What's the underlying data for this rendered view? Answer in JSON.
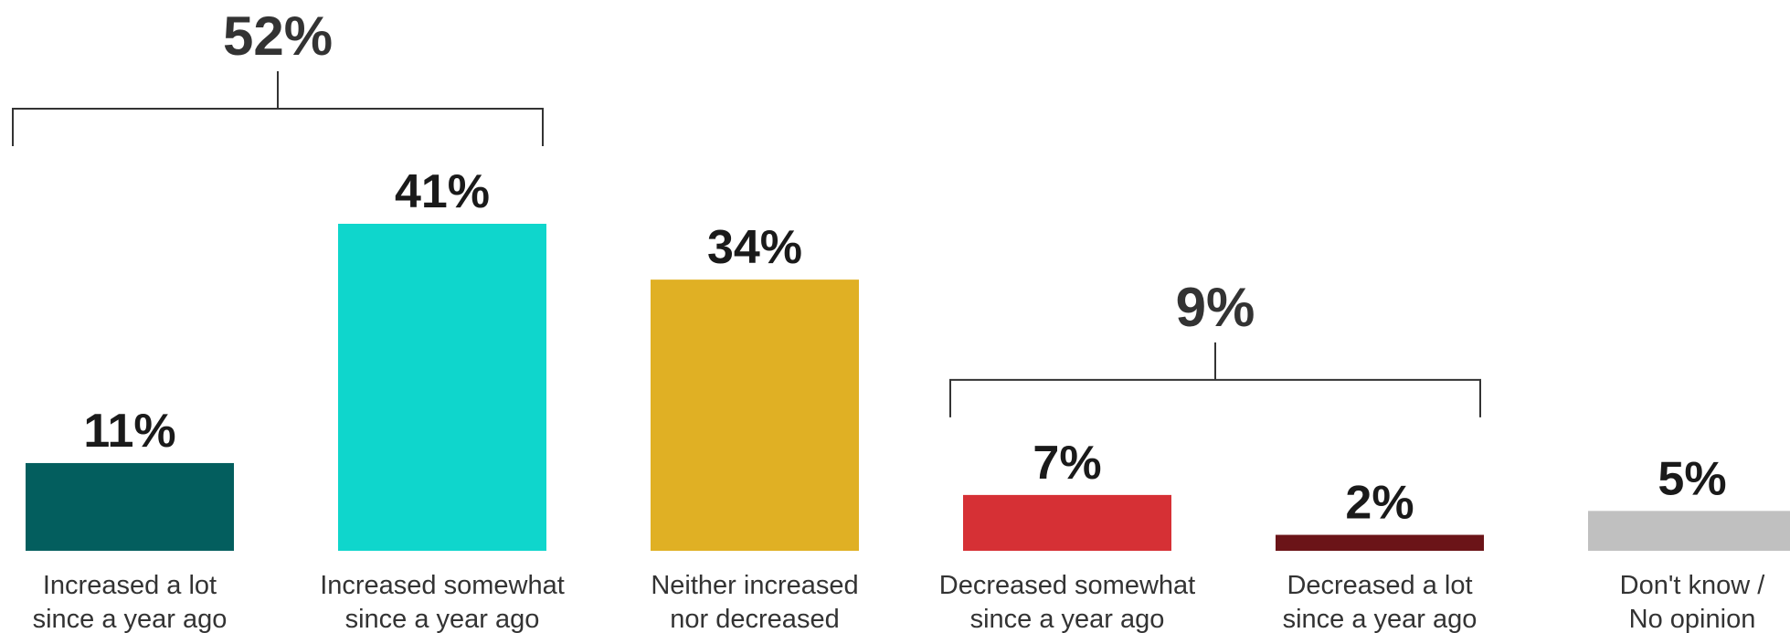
{
  "chart_data": {
    "type": "bar",
    "categories": [
      [
        "Increased a lot",
        "since a year ago"
      ],
      [
        "Increased somewhat",
        "since a year ago"
      ],
      [
        "Neither increased",
        "nor decreased"
      ],
      [
        "Decreased somewhat",
        "since a year ago"
      ],
      [
        "Decreased a lot",
        "since a year ago"
      ],
      [
        "Don't know /",
        "No opinion"
      ]
    ],
    "values": [
      11,
      41,
      34,
      7,
      2,
      5
    ],
    "value_labels": [
      "11%",
      "41%",
      "34%",
      "7%",
      "2%",
      "5%"
    ],
    "colors": [
      "#035e5e",
      "#0fd6cc",
      "#e0b024",
      "#d63035",
      "#6b1418",
      "#c0c0c0"
    ],
    "groups": [
      {
        "label": "52%",
        "value": 52,
        "from": 0,
        "to": 1
      },
      {
        "label": "9%",
        "value": 9,
        "from": 3,
        "to": 4
      }
    ],
    "ylim": [
      0,
      41
    ],
    "grid": false,
    "title": "",
    "xlabel": "",
    "ylabel": ""
  }
}
